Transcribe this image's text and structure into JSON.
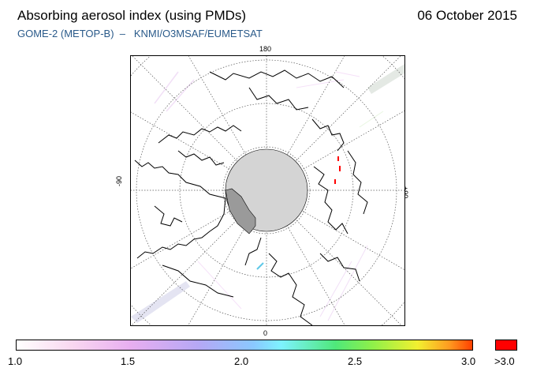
{
  "header": {
    "title": "Absorbing aerosol index (using PMDs)",
    "date": "06 October 2015",
    "subtitle": "GOME-2 (METOP-B)  –   KNMI/O3MSAF/EUMETSAT"
  },
  "map": {
    "projection": "polar-stereographic-north",
    "longitude_labels": {
      "top": "180",
      "bottom": "0",
      "left": "-90",
      "right": "+90"
    },
    "polar_gap_color": "#d4d4d4",
    "aerosol_hotspots": [
      {
        "lat": 69,
        "lon": 95,
        "value": ">3.0"
      },
      {
        "lat": 67,
        "lon": 92,
        "value": ">3.0"
      },
      {
        "lat": 65,
        "lon": 90,
        "value": ">3.0"
      }
    ]
  },
  "colorbar": {
    "tick_labels": [
      "1.0",
      "1.5",
      "2.0",
      "2.5",
      "3.0"
    ],
    "overflow_label": ">3.0",
    "min": 1.0,
    "max": 3.0,
    "overflow_color": "#ff0000"
  }
}
